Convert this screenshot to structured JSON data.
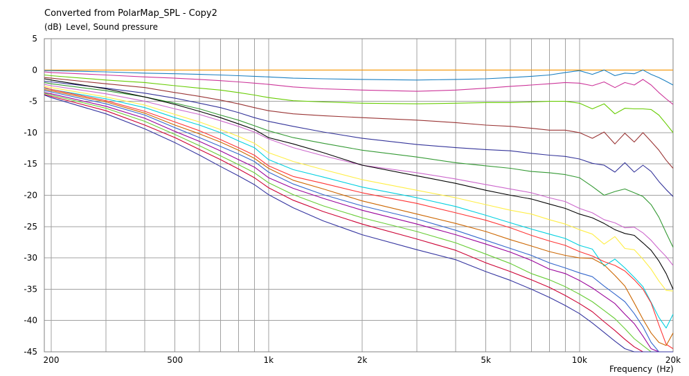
{
  "chart_data": {
    "type": "line",
    "title": "Converted from PolarMap_SPL - Copy2",
    "ylabel_unit": "(dB)",
    "ylabel": "Level, Sound pressure",
    "xlabel": "Frequency",
    "xlabel_unit": "(Hz)",
    "x_scale": "log",
    "xlim": [
      190,
      20000
    ],
    "ylim": [
      -45,
      5
    ],
    "grid": true,
    "x_ticks": [
      {
        "value": 200,
        "label": "200"
      },
      {
        "value": 500,
        "label": "500"
      },
      {
        "value": 1000,
        "label": "1k"
      },
      {
        "value": 2000,
        "label": "2k"
      },
      {
        "value": 5000,
        "label": "5k"
      },
      {
        "value": 10000,
        "label": "10k"
      },
      {
        "value": 20000,
        "label": "20k"
      }
    ],
    "x_gridlines": [
      200,
      300,
      400,
      500,
      600,
      700,
      800,
      900,
      1000,
      2000,
      3000,
      4000,
      5000,
      6000,
      7000,
      8000,
      9000,
      10000,
      20000
    ],
    "y_ticks": [
      5,
      0,
      -5,
      -10,
      -15,
      -20,
      -25,
      -30,
      -35,
      -40,
      -45
    ],
    "x": [
      190,
      200,
      300,
      400,
      500,
      600,
      700,
      800,
      900,
      1000,
      1200,
      1500,
      2000,
      3000,
      4000,
      5000,
      6000,
      7000,
      8000,
      9000,
      10000,
      11000,
      12000,
      13000,
      14000,
      15000,
      16000,
      17000,
      18000,
      19000,
      20000
    ],
    "series": [
      {
        "color": "#ff9900",
        "values": [
          0,
          0,
          0,
          0,
          0,
          0,
          0,
          0,
          0,
          0,
          0,
          0,
          0,
          0,
          0,
          0,
          0,
          0,
          0,
          0,
          0,
          0,
          0,
          0,
          0,
          0,
          0,
          0,
          0,
          0,
          0
        ]
      },
      {
        "color": "#1a7fc1",
        "values": [
          -0.1,
          -0.1,
          -0.3,
          -0.5,
          -0.6,
          -0.7,
          -0.8,
          -0.9,
          -1.0,
          -1.1,
          -1.3,
          -1.4,
          -1.5,
          -1.6,
          -1.5,
          -1.4,
          -1.2,
          -1.0,
          -0.8,
          -0.4,
          -0.1,
          -0.7,
          0.0,
          -0.9,
          -0.5,
          -0.6,
          0.0,
          -0.7,
          -1.2,
          -1.8,
          -2.4
        ]
      },
      {
        "color": "#cc3399",
        "values": [
          -0.3,
          -0.4,
          -0.8,
          -1.1,
          -1.3,
          -1.5,
          -1.7,
          -1.9,
          -2.1,
          -2.3,
          -2.7,
          -3.0,
          -3.2,
          -3.4,
          -3.2,
          -2.9,
          -2.6,
          -2.4,
          -2.2,
          -2.0,
          -2.1,
          -2.5,
          -1.9,
          -2.8,
          -2.0,
          -2.4,
          -1.5,
          -2.4,
          -3.6,
          -4.6,
          -5.5
        ]
      },
      {
        "color": "#66cc00",
        "values": [
          -0.8,
          -0.9,
          -1.6,
          -2.0,
          -2.5,
          -2.9,
          -3.2,
          -3.6,
          -4.0,
          -4.4,
          -4.9,
          -5.1,
          -5.3,
          -5.4,
          -5.3,
          -5.2,
          -5.2,
          -5.1,
          -5.0,
          -5.0,
          -5.3,
          -6.2,
          -5.4,
          -7.0,
          -6.1,
          -6.2,
          -6.2,
          -6.3,
          -7.2,
          -8.6,
          -10.0
        ]
      },
      {
        "color": "#993333",
        "values": [
          -1.2,
          -1.3,
          -2.2,
          -2.8,
          -3.6,
          -4.2,
          -4.8,
          -5.4,
          -6.0,
          -6.5,
          -7.0,
          -7.3,
          -7.6,
          -8.0,
          -8.4,
          -8.8,
          -9.0,
          -9.3,
          -9.6,
          -9.6,
          -10.0,
          -10.9,
          -9.9,
          -11.8,
          -10.1,
          -11.5,
          -10.0,
          -11.4,
          -12.8,
          -14.4,
          -15.7
        ]
      },
      {
        "color": "#333399",
        "values": [
          -1.8,
          -1.9,
          -2.9,
          -3.7,
          -4.5,
          -5.3,
          -6.0,
          -6.8,
          -7.6,
          -8.2,
          -9.0,
          -9.9,
          -10.9,
          -11.9,
          -12.4,
          -12.7,
          -12.9,
          -13.3,
          -13.6,
          -13.8,
          -14.2,
          -14.9,
          -15.2,
          -16.3,
          -14.8,
          -16.3,
          -15.2,
          -16.2,
          -17.8,
          -19.1,
          -20.2
        ]
      },
      {
        "color": "#339933",
        "values": [
          -2.0,
          -2.2,
          -3.3,
          -4.3,
          -5.3,
          -6.2,
          -7.2,
          -8.0,
          -8.9,
          -9.7,
          -10.8,
          -11.7,
          -12.8,
          -13.9,
          -14.8,
          -15.3,
          -15.7,
          -16.2,
          -16.4,
          -16.7,
          -17.2,
          -18.6,
          -20.0,
          -19.4,
          -19.0,
          -19.6,
          -20.2,
          -21.5,
          -23.5,
          -26.0,
          -28.3
        ]
      },
      {
        "color": "#cc66cc",
        "values": [
          -2.3,
          -2.5,
          -3.8,
          -5.0,
          -6.2,
          -7.1,
          -8.1,
          -9.0,
          -9.9,
          -11.0,
          -12.4,
          -13.7,
          -15.2,
          -16.4,
          -17.4,
          -18.3,
          -19.0,
          -19.6,
          -20.4,
          -21.0,
          -22.1,
          -22.8,
          -23.9,
          -24.4,
          -25.2,
          -25.1,
          -26.0,
          -27.2,
          -28.6,
          -29.8,
          -31.2
        ]
      },
      {
        "color": "#000000",
        "values": [
          -1.4,
          -1.6,
          -3.0,
          -4.3,
          -5.5,
          -6.6,
          -7.6,
          -8.6,
          -9.5,
          -10.8,
          -11.8,
          -13.2,
          -15.2,
          -16.9,
          -18.1,
          -19.2,
          -20.0,
          -20.6,
          -21.4,
          -22.1,
          -23.0,
          -23.6,
          -24.5,
          -25.5,
          -26.1,
          -26.4,
          -27.6,
          -28.8,
          -30.5,
          -32.5,
          -35.0
        ]
      },
      {
        "color": "#ffee44",
        "values": [
          -2.6,
          -2.8,
          -4.3,
          -5.6,
          -7.1,
          -8.3,
          -9.5,
          -10.6,
          -11.7,
          -13.2,
          -14.6,
          -15.9,
          -17.5,
          -19.2,
          -20.4,
          -21.5,
          -22.4,
          -23.0,
          -23.9,
          -24.6,
          -25.5,
          -26.2,
          -27.8,
          -26.6,
          -28.5,
          -28.7,
          -30.2,
          -31.8,
          -33.7,
          -35.2,
          -35.3
        ]
      },
      {
        "color": "#00d0e0",
        "values": [
          -2.9,
          -3.1,
          -4.6,
          -6.0,
          -7.6,
          -8.8,
          -10.0,
          -11.3,
          -12.4,
          -14.3,
          -15.9,
          -17.1,
          -18.7,
          -20.4,
          -21.8,
          -23.2,
          -24.4,
          -25.4,
          -26.2,
          -26.9,
          -28.0,
          -28.6,
          -31.3,
          -30.2,
          -31.6,
          -33.1,
          -34.6,
          -37.1,
          -39.5,
          -41.2,
          -39.0
        ]
      },
      {
        "color": "#ff3333",
        "values": [
          -2.8,
          -3.1,
          -4.9,
          -6.6,
          -8.3,
          -9.7,
          -11.1,
          -12.4,
          -13.6,
          -15.3,
          -17.0,
          -18.1,
          -19.6,
          -21.3,
          -22.8,
          -24.0,
          -25.2,
          -26.4,
          -27.3,
          -28.0,
          -29.0,
          -29.7,
          -30.6,
          -31.2,
          -32.1,
          -33.5,
          -35.0,
          -37.2,
          -40.7,
          -43.8,
          -44.5
        ]
      },
      {
        "color": "#cc6600",
        "values": [
          -3.1,
          -3.3,
          -5.1,
          -6.9,
          -8.8,
          -10.2,
          -11.5,
          -12.8,
          -14.1,
          -15.7,
          -17.6,
          -19.0,
          -20.9,
          -23.0,
          -24.5,
          -25.8,
          -27.1,
          -28.1,
          -29.0,
          -29.6,
          -30.0,
          -30.1,
          -31.1,
          -32.8,
          -34.5,
          -37.2,
          -39.8,
          -42.0,
          -43.5,
          -44.0,
          -42.0
        ]
      },
      {
        "color": "#3366cc",
        "values": [
          -3.3,
          -3.5,
          -5.4,
          -7.2,
          -9.2,
          -10.8,
          -12.2,
          -13.4,
          -14.6,
          -16.3,
          -18.2,
          -19.9,
          -21.7,
          -23.8,
          -25.6,
          -27.2,
          -28.5,
          -29.6,
          -30.8,
          -31.6,
          -32.4,
          -33.0,
          -34.5,
          -35.8,
          -37.0,
          -38.9,
          -41.0,
          -43.5,
          -45.0,
          -45.0,
          -45.0
        ]
      },
      {
        "color": "#990099",
        "values": [
          -3.6,
          -3.8,
          -5.8,
          -7.7,
          -9.8,
          -11.4,
          -12.9,
          -14.3,
          -15.5,
          -17.2,
          -18.9,
          -20.5,
          -22.4,
          -24.6,
          -26.3,
          -27.8,
          -29.1,
          -30.4,
          -31.8,
          -32.5,
          -33.6,
          -34.8,
          -36.1,
          -37.3,
          -39.0,
          -40.5,
          -42.5,
          -44.5,
          -45.0,
          -45.0,
          -45.0
        ]
      },
      {
        "color": "#66cc33",
        "values": [
          -3.7,
          -4.0,
          -6.1,
          -8.2,
          -10.3,
          -12.1,
          -13.7,
          -15.1,
          -16.4,
          -18.0,
          -19.9,
          -21.7,
          -23.6,
          -25.8,
          -27.6,
          -29.4,
          -30.9,
          -32.5,
          -33.5,
          -34.6,
          -35.8,
          -37.0,
          -38.4,
          -39.7,
          -41.3,
          -42.9,
          -44.0,
          -45.0,
          -45.0,
          -45.0,
          -45.0
        ]
      },
      {
        "color": "#cc0033",
        "values": [
          -3.9,
          -4.2,
          -6.5,
          -8.8,
          -10.8,
          -12.7,
          -14.3,
          -15.8,
          -17.2,
          -18.8,
          -20.8,
          -22.6,
          -24.6,
          -27.0,
          -28.8,
          -30.8,
          -32.2,
          -33.5,
          -34.7,
          -36.0,
          -37.3,
          -38.6,
          -40.2,
          -41.6,
          -43.0,
          -44.2,
          -45.0,
          -45.0,
          -45.0,
          -45.0,
          -45.0
        ]
      },
      {
        "color": "#33339f",
        "values": [
          -4.0,
          -4.4,
          -7.0,
          -9.4,
          -11.6,
          -13.6,
          -15.4,
          -16.9,
          -18.3,
          -19.9,
          -22.0,
          -24.1,
          -26.3,
          -28.7,
          -30.3,
          -32.2,
          -33.6,
          -35.0,
          -36.3,
          -37.6,
          -38.9,
          -40.4,
          -41.9,
          -43.3,
          -44.5,
          -45.0,
          -45.0,
          -45.0,
          -45.0,
          -45.0,
          -45.0
        ]
      }
    ]
  }
}
